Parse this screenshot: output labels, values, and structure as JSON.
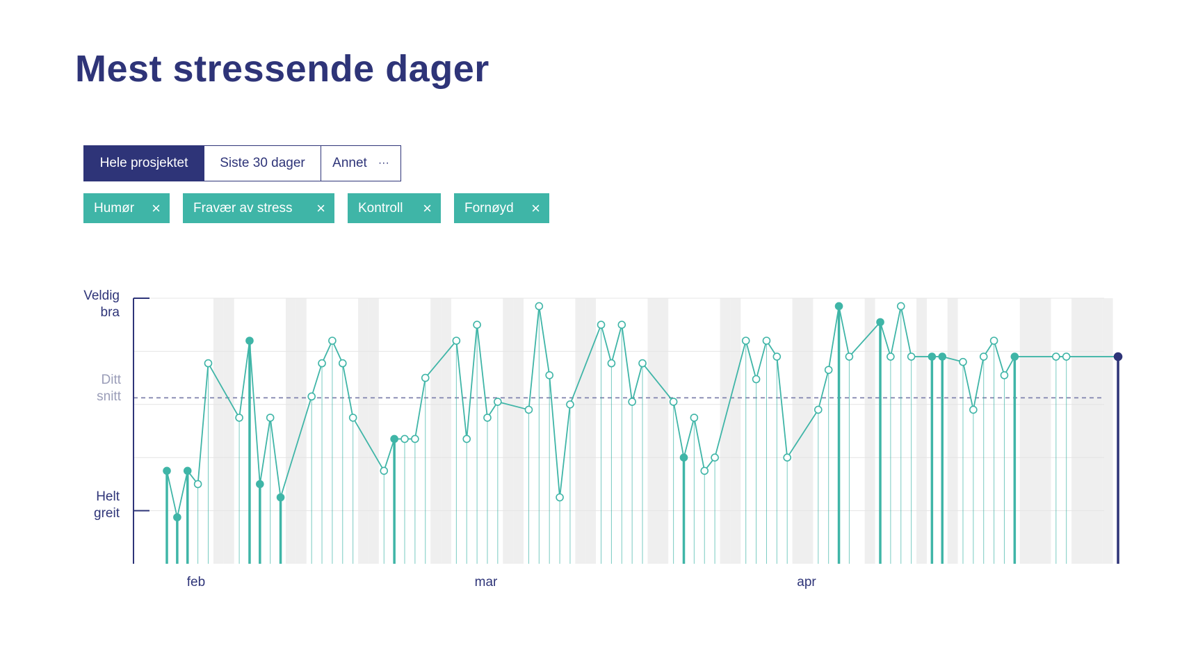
{
  "header": {
    "title": "Mest stressende dager"
  },
  "range_tabs": [
    {
      "label": "Hele prosjektet",
      "active": true
    },
    {
      "label": "Siste 30 dager",
      "active": false
    },
    {
      "label": "Annet",
      "more_icon": "···",
      "active": false
    }
  ],
  "filters": [
    {
      "label": "Humør",
      "close_icon": "×"
    },
    {
      "label": "Fravær av stress",
      "close_icon": "×"
    },
    {
      "label": "Kontroll",
      "close_icon": "×"
    },
    {
      "label": "Fornøyd",
      "close_icon": "×"
    }
  ],
  "chart_data": {
    "type": "line",
    "colors": {
      "line": "#3fb5a7",
      "current": "#2e3478",
      "axis": "#2e3478",
      "average": "#8d90b5",
      "weekend": "#efefef",
      "grid": "#e4e4e4"
    },
    "y_labels": {
      "top": [
        "Veldig",
        "bra"
      ],
      "average": [
        "Ditt",
        "snitt"
      ],
      "bottom": [
        "Helt",
        "greit"
      ]
    },
    "x_tick_labels": [
      {
        "label": "feb",
        "day": 3
      },
      {
        "label": "mar",
        "day": 31
      },
      {
        "label": "apr",
        "day": 62
      }
    ],
    "ylim": [
      0,
      10
    ],
    "average": 6.25,
    "grid": true,
    "weekend_shading": true,
    "days_shown": 93,
    "days": [
      0,
      1,
      2,
      3,
      4,
      7,
      8,
      9,
      10,
      11,
      14,
      15,
      16,
      17,
      18,
      21,
      22,
      23,
      24,
      25,
      28,
      29,
      30,
      31,
      32,
      35,
      36,
      37,
      38,
      39,
      42,
      43,
      44,
      45,
      46,
      49,
      50,
      51,
      52,
      53,
      56,
      57,
      58,
      59,
      60,
      63,
      64,
      65,
      66,
      69,
      70,
      71,
      72,
      74,
      75,
      77,
      78,
      79,
      80,
      81,
      82,
      86,
      87,
      92
    ],
    "values": [
      3.5,
      1.75,
      3.5,
      3.0,
      7.55,
      5.5,
      8.4,
      3.0,
      5.5,
      2.5,
      6.3,
      7.55,
      8.4,
      7.55,
      5.5,
      3.5,
      4.7,
      4.7,
      4.7,
      7.0,
      8.4,
      4.7,
      9.0,
      5.5,
      6.1,
      5.8,
      9.7,
      7.1,
      2.5,
      6.0,
      9.0,
      7.55,
      9.0,
      6.1,
      7.55,
      6.1,
      4.0,
      5.5,
      3.5,
      4.0,
      8.4,
      6.95,
      8.4,
      7.8,
      4.0,
      5.8,
      7.3,
      9.7,
      7.8,
      9.1,
      7.8,
      9.7,
      7.8,
      7.8,
      7.8,
      7.6,
      5.8,
      7.8,
      8.4,
      7.1,
      7.8,
      7.8,
      7.8,
      7.8
    ],
    "highlighted": [
      0,
      1,
      2,
      6,
      7,
      9,
      16,
      36,
      47,
      49,
      53,
      54,
      60,
      74,
      75,
      76,
      90,
      91,
      92,
      106
    ]
  }
}
